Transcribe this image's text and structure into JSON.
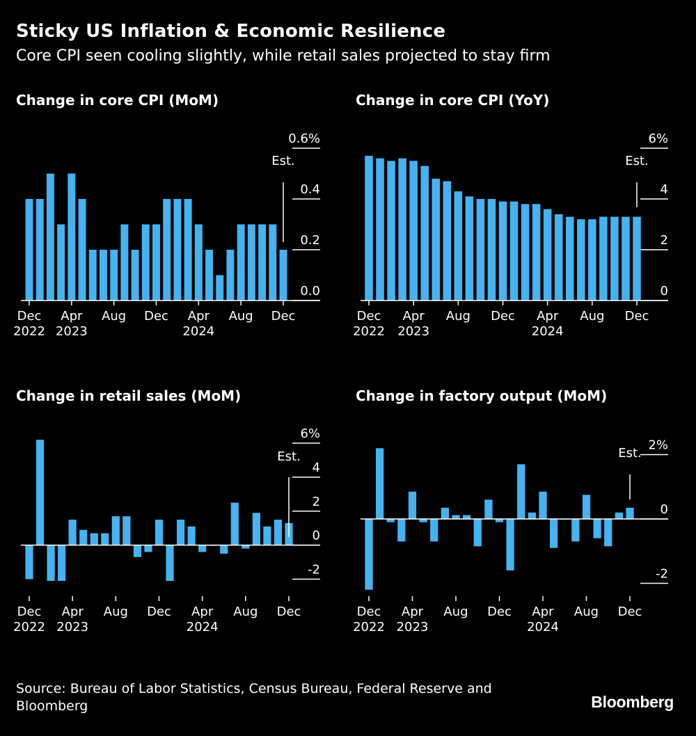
{
  "title": "Sticky US Inflation & Economic Resilience",
  "subtitle": "Core CPI seen cooling slightly, while retail sales projected to stay firm",
  "source": "Source: Bureau of Labor Statistics, Census Bureau, Federal Reserve and Bloomberg",
  "logo": "Bloomberg",
  "colors": {
    "bar": "#44b3ef",
    "background": "#000000",
    "text": "#ffffff"
  },
  "chart_data": [
    {
      "type": "bar",
      "title": "Change in core CPI (MoM)",
      "categories": [
        "Dec 2022",
        "Jan 2023",
        "Feb 2023",
        "Mar 2023",
        "Apr 2023",
        "May 2023",
        "Jun 2023",
        "Jul 2023",
        "Aug 2023",
        "Sep 2023",
        "Oct 2023",
        "Nov 2023",
        "Dec 2023",
        "Jan 2024",
        "Feb 2024",
        "Mar 2024",
        "Apr 2024",
        "May 2024",
        "Jun 2024",
        "Jul 2024",
        "Aug 2024",
        "Sep 2024",
        "Oct 2024",
        "Nov 2024",
        "Dec 2024"
      ],
      "values": [
        0.4,
        0.4,
        0.5,
        0.3,
        0.5,
        0.4,
        0.2,
        0.2,
        0.2,
        0.3,
        0.2,
        0.3,
        0.3,
        0.4,
        0.4,
        0.4,
        0.3,
        0.2,
        0.1,
        0.2,
        0.3,
        0.3,
        0.3,
        0.3,
        0.2
      ],
      "ylim": [
        0,
        0.6
      ],
      "yticks": [
        0,
        0.2,
        0.4,
        0.6
      ],
      "ytick_labels": [
        "0.0",
        "0.2",
        "0.4",
        "0.6%"
      ],
      "xticks": [
        {
          "index": 0,
          "label": "Dec",
          "year": "2022"
        },
        {
          "index": 4,
          "label": "Apr",
          "year": "2023"
        },
        {
          "index": 8,
          "label": "Aug",
          "year": ""
        },
        {
          "index": 12,
          "label": "Dec",
          "year": ""
        },
        {
          "index": 16,
          "label": "Apr",
          "year": "2024"
        },
        {
          "index": 20,
          "label": "Aug",
          "year": ""
        },
        {
          "index": 24,
          "label": "Dec",
          "year": ""
        }
      ],
      "annotation": {
        "label": "Est.",
        "index": 24
      }
    },
    {
      "type": "bar",
      "title": "Change in core CPI (YoY)",
      "categories": [
        "Dec 2022",
        "Jan 2023",
        "Feb 2023",
        "Mar 2023",
        "Apr 2023",
        "May 2023",
        "Jun 2023",
        "Jul 2023",
        "Aug 2023",
        "Sep 2023",
        "Oct 2023",
        "Nov 2023",
        "Dec 2023",
        "Jan 2024",
        "Feb 2024",
        "Mar 2024",
        "Apr 2024",
        "May 2024",
        "Jun 2024",
        "Jul 2024",
        "Aug 2024",
        "Sep 2024",
        "Oct 2024",
        "Nov 2024",
        "Dec 2024"
      ],
      "values": [
        5.7,
        5.6,
        5.5,
        5.6,
        5.5,
        5.3,
        4.8,
        4.7,
        4.3,
        4.1,
        4.0,
        4.0,
        3.9,
        3.9,
        3.8,
        3.8,
        3.6,
        3.4,
        3.3,
        3.2,
        3.2,
        3.3,
        3.3,
        3.3,
        3.3
      ],
      "ylim": [
        0,
        6
      ],
      "yticks": [
        0,
        2,
        4,
        6
      ],
      "ytick_labels": [
        "0",
        "2",
        "4",
        "6%"
      ],
      "xticks": [
        {
          "index": 0,
          "label": "Dec",
          "year": "2022"
        },
        {
          "index": 4,
          "label": "Apr",
          "year": "2023"
        },
        {
          "index": 8,
          "label": "Aug",
          "year": ""
        },
        {
          "index": 12,
          "label": "Dec",
          "year": ""
        },
        {
          "index": 16,
          "label": "Apr",
          "year": "2024"
        },
        {
          "index": 20,
          "label": "Aug",
          "year": ""
        },
        {
          "index": 24,
          "label": "Dec",
          "year": ""
        }
      ],
      "annotation": {
        "label": "Est.",
        "index": 24
      }
    },
    {
      "type": "bar",
      "title": "Change in retail sales (MoM)",
      "categories": [
        "Dec 2022",
        "Jan 2023",
        "Feb 2023",
        "Mar 2023",
        "Apr 2023",
        "May 2023",
        "Jun 2023",
        "Jul 2023",
        "Aug 2023",
        "Sep 2023",
        "Oct 2023",
        "Nov 2023",
        "Dec 2023",
        "Jan 2024",
        "Feb 2024",
        "Mar 2024",
        "Apr 2024",
        "May 2024",
        "Jun 2024",
        "Jul 2024",
        "Aug 2024",
        "Sep 2024",
        "Oct 2024",
        "Nov 2024",
        "Dec 2024"
      ],
      "values": [
        -2.0,
        6.2,
        -2.1,
        -2.1,
        1.5,
        0.9,
        0.7,
        0.7,
        1.7,
        1.7,
        -0.7,
        -0.4,
        1.5,
        -2.1,
        1.5,
        1.1,
        -0.4,
        0.0,
        -0.5,
        2.5,
        -0.2,
        1.9,
        1.1,
        1.5,
        1.3
      ],
      "ylim": [
        -3,
        6
      ],
      "yticks": [
        -2,
        0,
        2,
        4,
        6
      ],
      "ytick_labels": [
        "-2",
        "0",
        "2",
        "4",
        "6%"
      ],
      "xticks": [
        {
          "index": 0,
          "label": "Dec",
          "year": "2022"
        },
        {
          "index": 4,
          "label": "Apr",
          "year": "2023"
        },
        {
          "index": 8,
          "label": "Aug",
          "year": ""
        },
        {
          "index": 12,
          "label": "Dec",
          "year": ""
        },
        {
          "index": 16,
          "label": "Apr",
          "year": "2024"
        },
        {
          "index": 20,
          "label": "Aug",
          "year": ""
        },
        {
          "index": 24,
          "label": "Dec",
          "year": ""
        }
      ],
      "annotation": {
        "label": "Est.",
        "index": 24
      }
    },
    {
      "type": "bar",
      "title": "Change in factory output (MoM)",
      "categories": [
        "Dec 2022",
        "Jan 2023",
        "Feb 2023",
        "Mar 2023",
        "Apr 2023",
        "May 2023",
        "Jun 2023",
        "Jul 2023",
        "Aug 2023",
        "Sep 2023",
        "Oct 2023",
        "Nov 2023",
        "Dec 2023",
        "Jan 2024",
        "Feb 2024",
        "Mar 2024",
        "Apr 2024",
        "May 2024",
        "Jun 2024",
        "Jul 2024",
        "Aug 2024",
        "Sep 2024",
        "Oct 2024",
        "Nov 2024",
        "Dec 2024"
      ],
      "values": [
        -2.2,
        2.2,
        -0.1,
        -0.7,
        0.85,
        -0.1,
        -0.7,
        0.35,
        0.12,
        0.12,
        -0.85,
        0.6,
        -0.1,
        -1.6,
        1.7,
        0.2,
        0.85,
        -0.9,
        0.0,
        -0.7,
        0.75,
        -0.6,
        -0.85,
        0.2,
        0.35
      ],
      "ylim": [
        -2.4,
        2.4
      ],
      "yticks": [
        -2,
        0,
        2
      ],
      "ytick_labels": [
        "-2",
        "0",
        "2%"
      ],
      "xticks": [
        {
          "index": 0,
          "label": "Dec",
          "year": "2022"
        },
        {
          "index": 4,
          "label": "Apr",
          "year": "2023"
        },
        {
          "index": 8,
          "label": "Aug",
          "year": ""
        },
        {
          "index": 12,
          "label": "Dec",
          "year": ""
        },
        {
          "index": 16,
          "label": "Apr",
          "year": "2024"
        },
        {
          "index": 20,
          "label": "Aug",
          "year": ""
        },
        {
          "index": 24,
          "label": "Dec",
          "year": ""
        }
      ],
      "annotation": {
        "label": "Est.",
        "index": 24
      }
    }
  ]
}
